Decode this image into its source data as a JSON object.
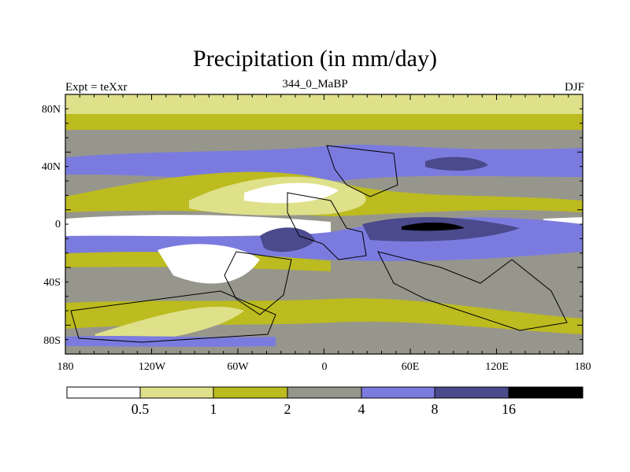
{
  "header": {
    "title": "Precipitation (in mm/day)",
    "left": "Expt = teXxr",
    "center": "344_0_MaBP",
    "right": "DJF"
  },
  "axes": {
    "lat_ticks": [
      "80N",
      "40N",
      "0",
      "40S",
      "80S"
    ],
    "lon_ticks": [
      "180",
      "120W",
      "60W",
      "0",
      "60E",
      "120E",
      "180"
    ]
  },
  "colorbar": {
    "levels": [
      "0.5",
      "1",
      "2",
      "4",
      "8",
      "16"
    ],
    "colors": [
      "#ffffff",
      "#dfe08a",
      "#bcbb1f",
      "#97968c",
      "#7b7bdf",
      "#4a4a8c",
      "#000000"
    ]
  }
}
